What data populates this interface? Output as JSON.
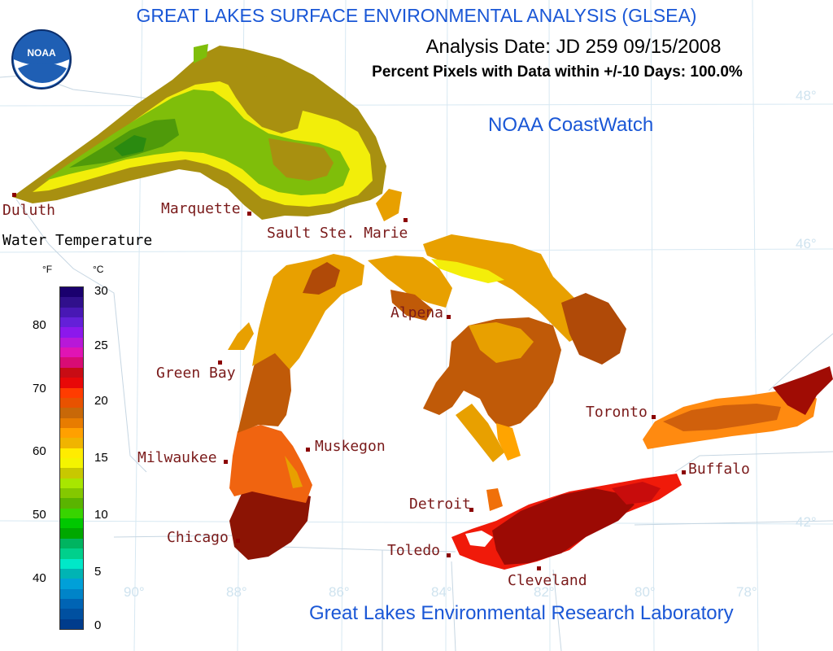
{
  "header": {
    "title": "GREAT LAKES SURFACE ENVIRONMENTAL ANALYSIS (GLSEA)",
    "analysis_date": "Analysis Date:  JD 259 09/15/2008",
    "percent_pixels": "Percent Pixels with Data within +/-10 Days: 100.0%",
    "coastwatch": "NOAA CoastWatch",
    "footer": "Great Lakes Environmental Research Laboratory"
  },
  "logo": {
    "text": "NOAA"
  },
  "cities": [
    {
      "name": "Duluth"
    },
    {
      "name": "Marquette"
    },
    {
      "name": "Sault Ste. Marie"
    },
    {
      "name": "Alpena"
    },
    {
      "name": "Green Bay"
    },
    {
      "name": "Toronto"
    },
    {
      "name": "Muskegon"
    },
    {
      "name": "Milwaukee"
    },
    {
      "name": "Buffalo"
    },
    {
      "name": "Detroit"
    },
    {
      "name": "Chicago"
    },
    {
      "name": "Toledo"
    },
    {
      "name": "Cleveland"
    }
  ],
  "graticule": {
    "lat_labels": [
      "48°",
      "46°",
      "42°"
    ],
    "lon_labels": [
      "90°",
      "88°",
      "86°",
      "84°",
      "82°",
      "80°",
      "78°"
    ]
  },
  "legend": {
    "title": "Water Temperature",
    "unit_f": "°F",
    "unit_c": "°C",
    "ticks_f": [
      "80",
      "70",
      "60",
      "50",
      "40"
    ],
    "ticks_c": [
      "30",
      "25",
      "20",
      "15",
      "10",
      "5",
      "0"
    ],
    "colors": [
      "#1a006e",
      "#30108c",
      "#4818b4",
      "#6420d8",
      "#8c18ec",
      "#b818d8",
      "#e014b4",
      "#d80c74",
      "#c80c14",
      "#e80808",
      "#ff3c00",
      "#e85200",
      "#c86808",
      "#e87c00",
      "#ffa000",
      "#f0b400",
      "#ffec00",
      "#f4f400",
      "#c8c800",
      "#a8e600",
      "#84c800",
      "#5ab400",
      "#38d400",
      "#00c800",
      "#00a800",
      "#00b460",
      "#00d08c",
      "#00e8c8",
      "#00b4b4",
      "#00a0d8",
      "#0084c8",
      "#0064b4",
      "#0050a0",
      "#003c8c"
    ],
    "colors_meaning": "top = warmest (30°C / 86°F), bottom = coldest (0°C / 32°F)"
  }
}
